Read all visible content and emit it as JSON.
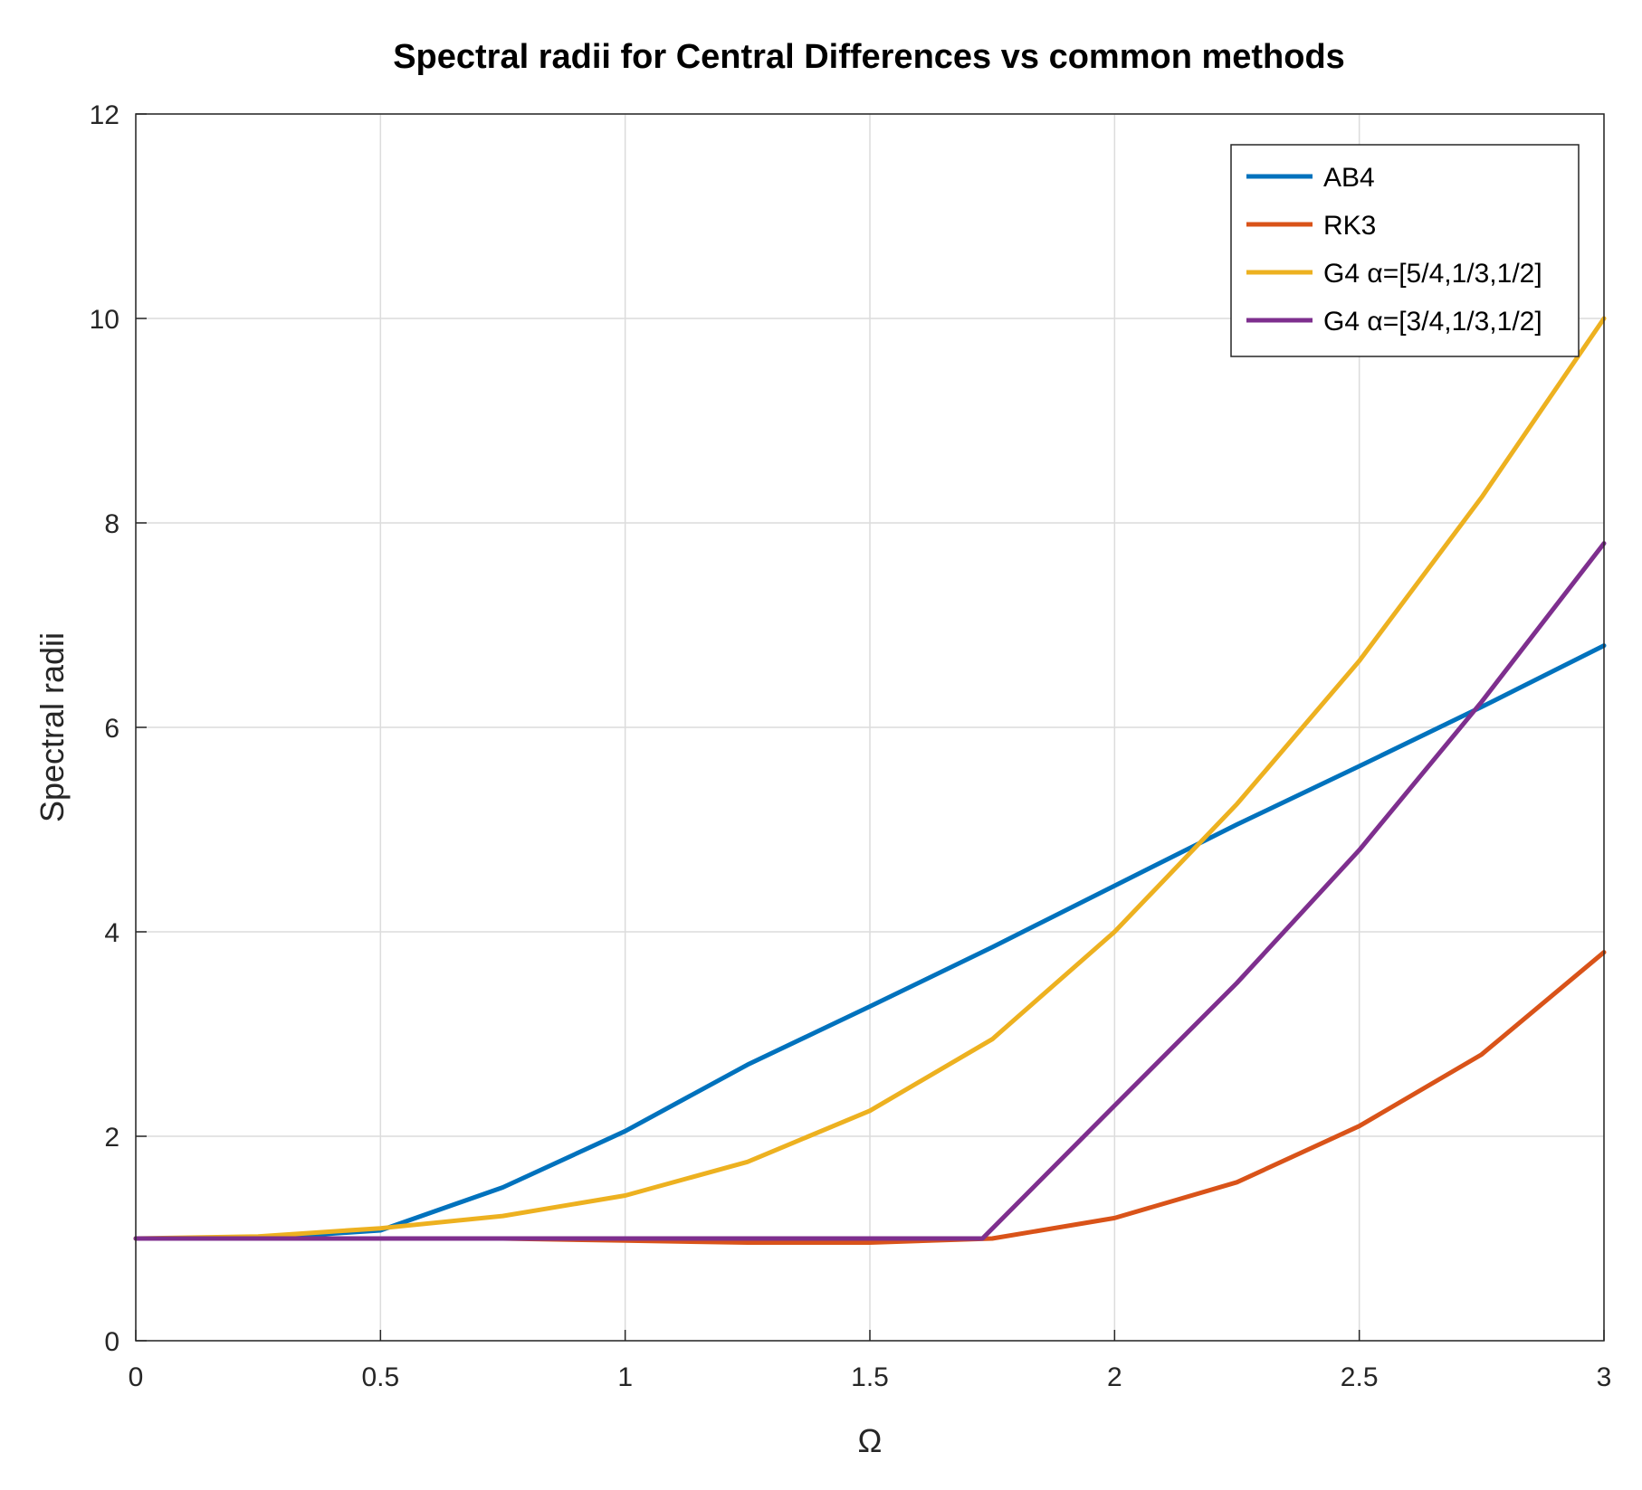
{
  "chart_data": {
    "type": "line",
    "title": "Spectral radii for Central Differences vs common methods",
    "xlabel": "Ω",
    "ylabel": "Spectral radii",
    "xlim": [
      0,
      3
    ],
    "ylim": [
      0,
      12
    ],
    "xticks": [
      0,
      0.5,
      1,
      1.5,
      2,
      2.5,
      3
    ],
    "xtick_labels": [
      "0",
      "0.5",
      "1",
      "1.5",
      "2",
      "2.5",
      "3"
    ],
    "yticks": [
      0,
      2,
      4,
      6,
      8,
      10,
      12
    ],
    "ytick_labels": [
      "0",
      "2",
      "4",
      "6",
      "8",
      "10",
      "12"
    ],
    "grid": true,
    "legend_position": "top-right",
    "series": [
      {
        "name": "AB4",
        "color": "#0072BD",
        "x": [
          0,
          0.25,
          0.5,
          0.75,
          1.0,
          1.25,
          1.5,
          1.75,
          2.0,
          2.25,
          2.5,
          2.75,
          3.0
        ],
        "y": [
          1.0,
          1.0,
          1.08,
          1.5,
          2.05,
          2.7,
          3.27,
          3.85,
          4.45,
          5.05,
          5.62,
          6.2,
          6.8
        ]
      },
      {
        "name": "RK3",
        "color": "#D95319",
        "x": [
          0,
          0.25,
          0.5,
          0.75,
          1.0,
          1.25,
          1.5,
          1.75,
          2.0,
          2.25,
          2.5,
          2.75,
          3.0
        ],
        "y": [
          1.0,
          1.0,
          1.0,
          1.0,
          0.98,
          0.96,
          0.96,
          1.0,
          1.2,
          1.55,
          2.1,
          2.8,
          3.8
        ]
      },
      {
        "name": "G4 α=[5/4,1/3,1/2]",
        "color": "#EDB120",
        "x": [
          0,
          0.25,
          0.5,
          0.75,
          1.0,
          1.25,
          1.5,
          1.75,
          2.0,
          2.25,
          2.5,
          2.75,
          3.0
        ],
        "y": [
          1.0,
          1.02,
          1.1,
          1.22,
          1.42,
          1.75,
          2.25,
          2.95,
          4.0,
          5.25,
          6.65,
          8.25,
          10.0
        ]
      },
      {
        "name": "G4 α=[3/4,1/3,1/2]",
        "color": "#7E2F8E",
        "x": [
          0,
          0.25,
          0.5,
          0.75,
          1.0,
          1.25,
          1.5,
          1.73,
          2.0,
          2.25,
          2.5,
          2.75,
          3.0
        ],
        "y": [
          1.0,
          1.0,
          1.0,
          1.0,
          1.0,
          1.0,
          1.0,
          1.0,
          2.3,
          3.5,
          4.8,
          6.25,
          7.8
        ]
      }
    ]
  }
}
